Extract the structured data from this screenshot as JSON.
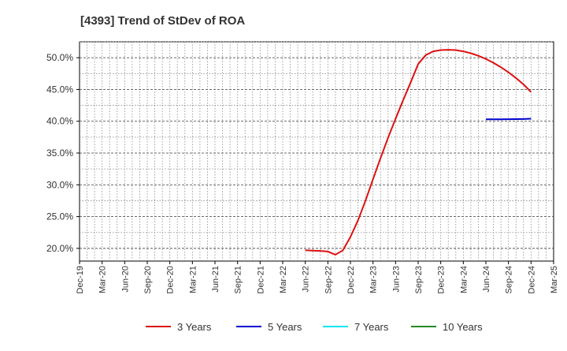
{
  "chart_data": {
    "type": "line",
    "title": "[4393]  Trend of StDev of ROA",
    "xlabel": "",
    "ylabel": "",
    "x_ticks": [
      "Dec-19",
      "Mar-20",
      "Jun-20",
      "Sep-20",
      "Dec-20",
      "Mar-21",
      "Jun-21",
      "Sep-21",
      "Dec-21",
      "Mar-22",
      "Jun-22",
      "Sep-22",
      "Dec-22",
      "Mar-23",
      "Jun-23",
      "Sep-23",
      "Dec-23",
      "Mar-24",
      "Jun-24",
      "Sep-24",
      "Dec-24",
      "Mar-25"
    ],
    "y_ticks": [
      "20.0%",
      "25.0%",
      "30.0%",
      "35.0%",
      "40.0%",
      "45.0%",
      "50.0%"
    ],
    "ylim": [
      18.0,
      52.5
    ],
    "grid": true,
    "legend_position": "bottom",
    "series": [
      {
        "name": "3 Years",
        "color": "#dd1111",
        "points": [
          [
            "Jun-22",
            19.7
          ],
          [
            "Jul-22",
            19.65
          ],
          [
            "Aug-22",
            19.6
          ],
          [
            "Sep-22",
            19.5
          ],
          [
            "Oct-22",
            19.0
          ],
          [
            "Nov-22",
            19.7
          ],
          [
            "Dec-22",
            21.8
          ],
          [
            "Jan-23",
            24.4
          ],
          [
            "Feb-23",
            27.5
          ],
          [
            "Mar-23",
            30.9
          ],
          [
            "Apr-23",
            34.2
          ],
          [
            "May-23",
            37.4
          ],
          [
            "Jun-23",
            40.4
          ],
          [
            "Jul-23",
            43.3
          ],
          [
            "Aug-23",
            46.1
          ],
          [
            "Sep-23",
            49.0
          ],
          [
            "Oct-23",
            50.4
          ],
          [
            "Nov-23",
            51.0
          ],
          [
            "Dec-23",
            51.2
          ],
          [
            "Jan-24",
            51.25
          ],
          [
            "Feb-24",
            51.2
          ],
          [
            "Mar-24",
            51.0
          ],
          [
            "Apr-24",
            50.7
          ],
          [
            "May-24",
            50.3
          ],
          [
            "Jun-24",
            49.8
          ],
          [
            "Jul-24",
            49.2
          ],
          [
            "Aug-24",
            48.5
          ],
          [
            "Sep-24",
            47.7
          ],
          [
            "Oct-24",
            46.8
          ],
          [
            "Nov-24",
            45.8
          ],
          [
            "Dec-24",
            44.6
          ]
        ]
      },
      {
        "name": "5 Years",
        "color": "#0000cc",
        "points": [
          [
            "Jun-24",
            40.3
          ],
          [
            "Jul-24",
            40.3
          ],
          [
            "Aug-24",
            40.3
          ],
          [
            "Sep-24",
            40.32
          ],
          [
            "Oct-24",
            40.34
          ],
          [
            "Nov-24",
            40.36
          ],
          [
            "Dec-24",
            40.4
          ]
        ]
      },
      {
        "name": "7 Years",
        "color": "#00e5ee",
        "points": []
      },
      {
        "name": "10 Years",
        "color": "#228b22",
        "points": []
      }
    ]
  }
}
